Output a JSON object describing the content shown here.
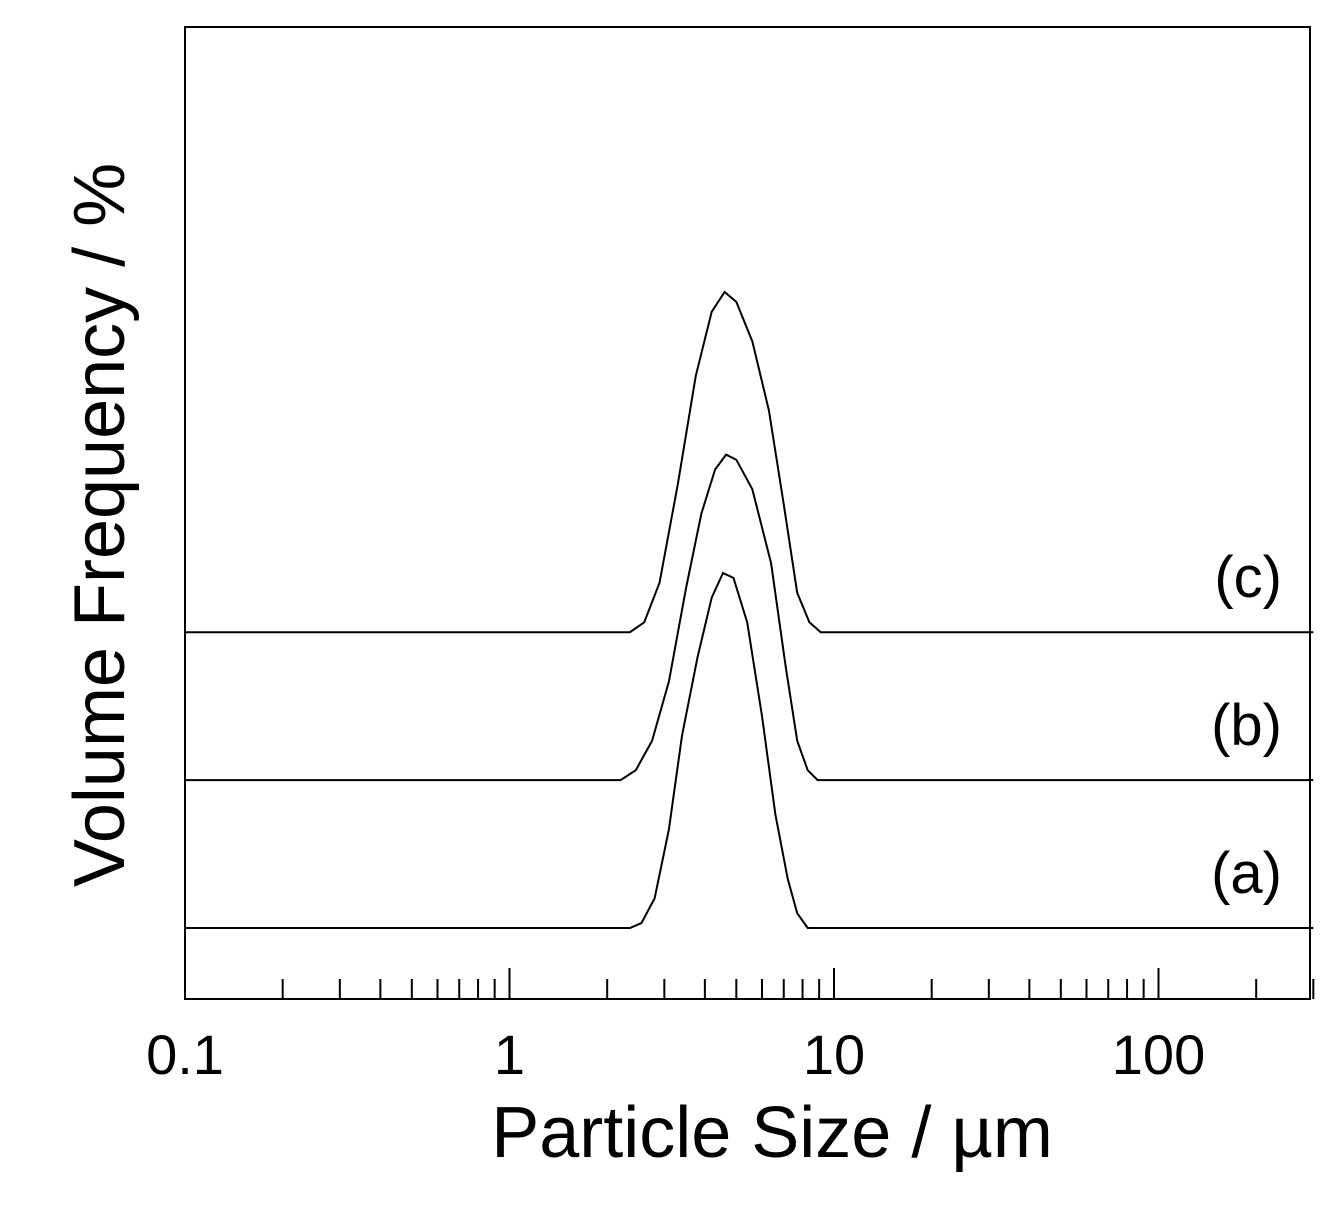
{
  "chart_data": {
    "type": "line",
    "xlabel": "Particle Size / µm",
    "ylabel": "Volume Frequency / %",
    "xscale": "log",
    "xlim": [
      0.1,
      300
    ],
    "x_ticks": [
      0.1,
      1,
      10,
      100
    ],
    "x_tick_labels": [
      "0.1",
      "1",
      "10",
      "100"
    ],
    "yaxis_ticks_shown": false,
    "grid": false,
    "curves_offset_vertically": true,
    "series": [
      {
        "name": "(a)",
        "baseline": 0,
        "points": [
          [
            0.1,
            0
          ],
          [
            2.35,
            0
          ],
          [
            2.55,
            0.1
          ],
          [
            2.8,
            0.6
          ],
          [
            3.1,
            2.0
          ],
          [
            3.4,
            3.9
          ],
          [
            3.8,
            5.5
          ],
          [
            4.2,
            6.7
          ],
          [
            4.55,
            7.2
          ],
          [
            4.9,
            7.1
          ],
          [
            5.4,
            6.2
          ],
          [
            6.0,
            4.3
          ],
          [
            6.6,
            2.3
          ],
          [
            7.2,
            1.0
          ],
          [
            7.7,
            0.3
          ],
          [
            8.3,
            0
          ],
          [
            300,
            0
          ]
        ]
      },
      {
        "name": "(b)",
        "baseline": 3,
        "points": [
          [
            0.1,
            3
          ],
          [
            2.2,
            3
          ],
          [
            2.45,
            3.2
          ],
          [
            2.75,
            3.8
          ],
          [
            3.1,
            5.0
          ],
          [
            3.5,
            6.9
          ],
          [
            3.9,
            8.4
          ],
          [
            4.3,
            9.3
          ],
          [
            4.65,
            9.6
          ],
          [
            5.0,
            9.5
          ],
          [
            5.6,
            8.9
          ],
          [
            6.4,
            7.4
          ],
          [
            7.1,
            5.3
          ],
          [
            7.7,
            3.8
          ],
          [
            8.3,
            3.2
          ],
          [
            8.9,
            3
          ],
          [
            300,
            3
          ]
        ]
      },
      {
        "name": "(c)",
        "baseline": 6,
        "points": [
          [
            0.1,
            6
          ],
          [
            2.35,
            6
          ],
          [
            2.6,
            6.2
          ],
          [
            2.9,
            7.0
          ],
          [
            3.3,
            9.0
          ],
          [
            3.75,
            11.2
          ],
          [
            4.2,
            12.5
          ],
          [
            4.6,
            12.9
          ],
          [
            5.0,
            12.7
          ],
          [
            5.6,
            11.9
          ],
          [
            6.3,
            10.5
          ],
          [
            7.0,
            8.6
          ],
          [
            7.7,
            6.8
          ],
          [
            8.4,
            6.2
          ],
          [
            9.1,
            6
          ],
          [
            300,
            6
          ]
        ]
      }
    ]
  }
}
